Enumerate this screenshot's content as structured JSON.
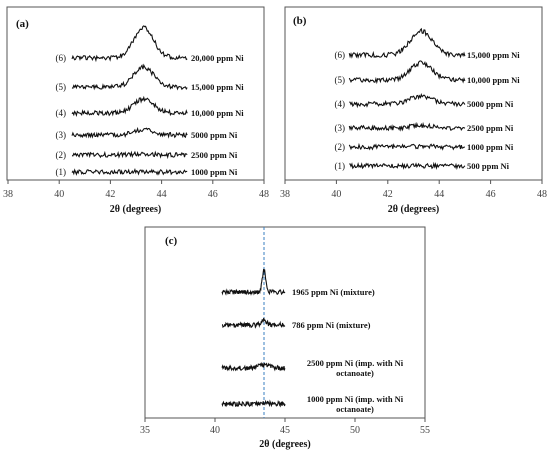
{
  "chart_data": [
    {
      "type": "line",
      "panel_label": "(a)",
      "xlabel": "2θ (degrees)",
      "ylabel": "",
      "xlim": [
        38,
        48
      ],
      "xticks": [
        "38",
        "40",
        "42",
        "44",
        "46",
        "48"
      ],
      "series": [
        {
          "number": "(1)",
          "name": "1000 ppm Ni",
          "amplitude": 0.2
        },
        {
          "number": "(2)",
          "name": "2500 ppm Ni",
          "amplitude": 1.2
        },
        {
          "number": "(3)",
          "name": "5000 ppm Ni",
          "amplitude": 5
        },
        {
          "number": "(4)",
          "name": "10,000 ppm Ni",
          "amplitude": 14
        },
        {
          "number": "(5)",
          "name": "15,000 ppm Ni",
          "amplitude": 20
        },
        {
          "number": "(6)",
          "name": "20,000 ppm Ni",
          "amplitude": 30
        }
      ],
      "x": [
        40.5,
        45.0
      ],
      "peak_center": 43.3,
      "peak_width": 0.55
    },
    {
      "type": "line",
      "panel_label": "(b)",
      "xlabel": "2θ (degrees)",
      "ylabel": "",
      "xlim": [
        38,
        48
      ],
      "xticks": [
        "38",
        "40",
        "42",
        "44",
        "46",
        "48"
      ],
      "series": [
        {
          "number": "(1)",
          "name": "500 ppm Ni",
          "amplitude": 0
        },
        {
          "number": "(2)",
          "name": "1000 ppm Ni",
          "amplitude": 0.8
        },
        {
          "number": "(3)",
          "name": "2500 ppm Ni",
          "amplitude": 2.5
        },
        {
          "number": "(4)",
          "name": "5000 ppm Ni",
          "amplitude": 8
        },
        {
          "number": "(5)",
          "name": "10,000 ppm Ni",
          "amplitude": 17
        },
        {
          "number": "(6)",
          "name": "15,000 ppm Ni",
          "amplitude": 24
        }
      ],
      "x": [
        40.5,
        45.0
      ],
      "peak_center": 43.3,
      "peak_width": 0.6
    },
    {
      "type": "line",
      "panel_label": "(c)",
      "xlabel": "2θ (degrees)",
      "ylabel": "",
      "xlim": [
        35,
        55
      ],
      "xticks": [
        "35",
        "40",
        "45",
        "50",
        "55"
      ],
      "reference_line_x": 43.5,
      "series": [
        {
          "name": "1000 ppm Ni (imp. with Ni\noctanoate)",
          "amplitude": 1.0,
          "peak_width": 0.6
        },
        {
          "name": "2500 ppm Ni (imp. with Ni\noctanoate)",
          "amplitude": 3.0,
          "peak_width": 0.6
        },
        {
          "name": "786 ppm Ni (mixture)",
          "amplitude": 5.0,
          "peak_width": 0.25
        },
        {
          "name": "1965  ppm Ni (mixture)",
          "amplitude": 22.0,
          "peak_width": 0.18
        }
      ],
      "x": [
        40.5,
        45.0
      ],
      "peak_center": 43.5
    }
  ]
}
